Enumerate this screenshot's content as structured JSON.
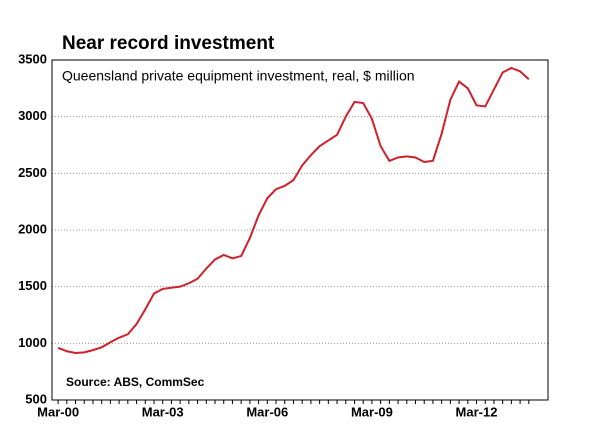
{
  "chart_data": {
    "type": "line",
    "title": "Near record investment",
    "subtitle": "Queensland private equipment investment, real, $ million",
    "source": "Source: ABS, CommSec",
    "categories": [
      "Mar-00",
      null,
      null,
      null,
      null,
      null,
      null,
      null,
      null,
      null,
      null,
      null,
      "Mar-03",
      null,
      null,
      null,
      null,
      null,
      null,
      null,
      null,
      null,
      null,
      null,
      "Mar-06",
      null,
      null,
      null,
      null,
      null,
      null,
      null,
      null,
      null,
      null,
      null,
      "Mar-09",
      null,
      null,
      null,
      null,
      null,
      null,
      null,
      null,
      null,
      null,
      null,
      "Mar-12",
      null,
      null,
      null,
      null,
      null,
      null
    ],
    "series": [
      {
        "name": "Queensland private equipment investment",
        "color": "#d0202a",
        "values": [
          960,
          930,
          915,
          920,
          940,
          965,
          1010,
          1050,
          1080,
          1170,
          1300,
          1440,
          1480,
          1490,
          1500,
          1530,
          1570,
          1660,
          1740,
          1780,
          1750,
          1770,
          1930,
          2130,
          2280,
          2360,
          2390,
          2440,
          2570,
          2660,
          2740,
          2790,
          2840,
          3000,
          3130,
          3120,
          2980,
          2740,
          2610,
          2640,
          2650,
          2640,
          2600,
          2610,
          2850,
          3150,
          3310,
          3250,
          3100,
          3090,
          3240,
          3390,
          3430,
          3400,
          3330
        ]
      }
    ],
    "ylim": [
      500,
      3500
    ],
    "yticks": [
      500,
      1000,
      1500,
      2000,
      2500,
      3000,
      3500
    ],
    "grid": true
  }
}
